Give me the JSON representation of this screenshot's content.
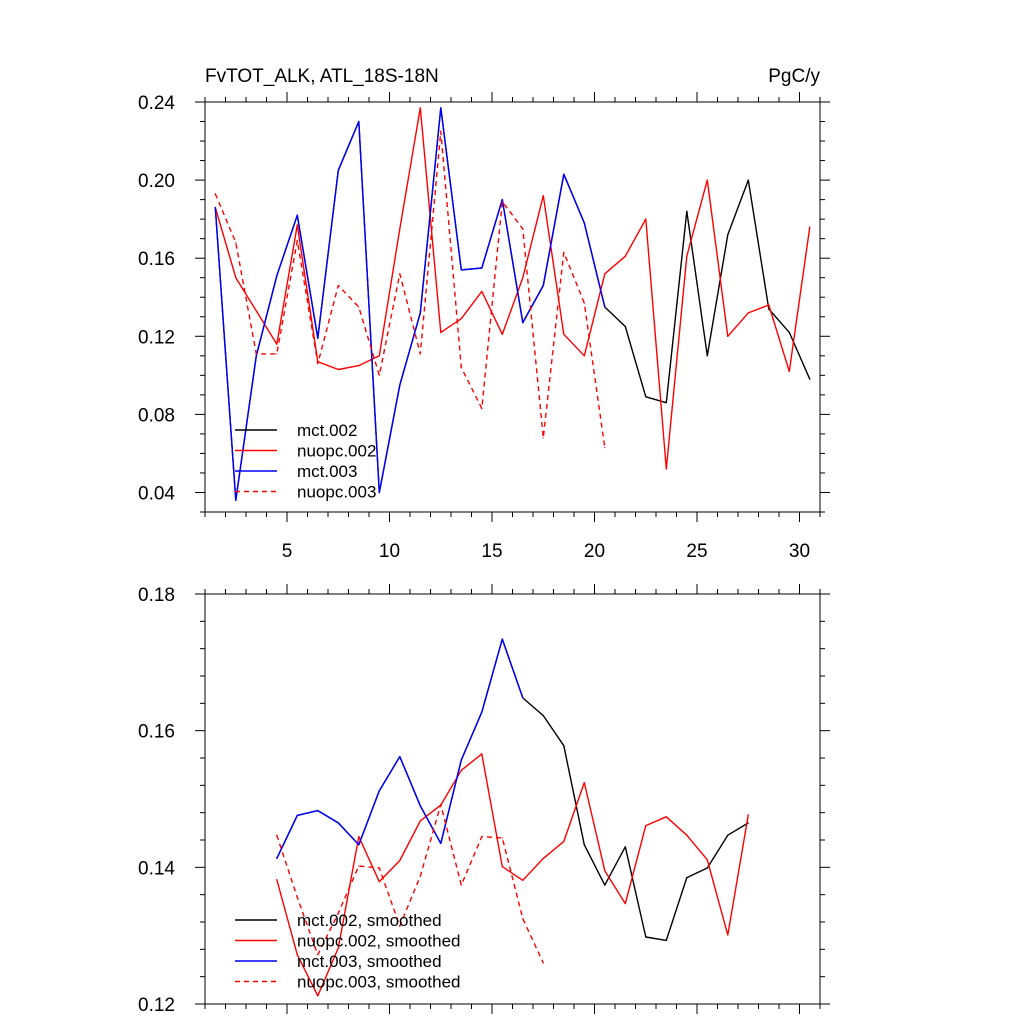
{
  "chart_data": [
    {
      "type": "line",
      "title": "FvTOT_ALK, ATL_18S-18N",
      "units": "PgC/y",
      "xlim": [
        1,
        31
      ],
      "ylim": [
        0.03,
        0.24
      ],
      "xticks": [
        5,
        10,
        15,
        20,
        25,
        30
      ],
      "xtick_labels": [
        "5",
        "10",
        "15",
        "20",
        "25",
        "30"
      ],
      "yticks": [
        0.04,
        0.08,
        0.12,
        0.16,
        0.2,
        0.24
      ],
      "ytick_labels": [
        "0.04",
        "0.08",
        "0.12",
        "0.16",
        "0.20",
        "0.24"
      ],
      "legend_position": "bottom-left",
      "series": [
        {
          "name": "mct.002",
          "color": "#000000",
          "dash": "solid",
          "x": [
            1.5,
            2.5,
            3.5,
            4.5,
            5.5,
            6.5,
            7.5,
            8.5,
            9.5,
            10.5,
            11.5,
            12.5,
            13.5,
            14.5,
            15.5,
            16.5,
            17.5,
            18.5,
            19.5,
            20.5,
            21.5,
            22.5,
            23.5,
            24.5,
            25.5,
            26.5,
            27.5,
            28.5,
            29.5,
            30.5
          ],
          "values": [
            0.186,
            0.036,
            0.11,
            0.151,
            0.182,
            0.119,
            0.205,
            0.23,
            0.04,
            0.095,
            0.132,
            0.237,
            0.154,
            0.155,
            0.19,
            0.127,
            0.146,
            0.203,
            0.178,
            0.135,
            0.125,
            0.089,
            0.086,
            0.184,
            0.11,
            0.172,
            0.2,
            0.134,
            0.122,
            0.098
          ]
        },
        {
          "name": "nuopc.002",
          "color": "#ff0000",
          "dash": "solid",
          "x": [
            1.5,
            2.5,
            3.5,
            4.5,
            5.5,
            6.5,
            7.5,
            8.5,
            9.5,
            10.5,
            11.5,
            12.5,
            13.5,
            14.5,
            15.5,
            16.5,
            17.5,
            18.5,
            19.5,
            20.5,
            21.5,
            22.5,
            23.5,
            24.5,
            25.5,
            26.5,
            27.5,
            28.5,
            29.5,
            30.5
          ],
          "values": [
            0.186,
            0.15,
            0.133,
            0.116,
            0.177,
            0.107,
            0.103,
            0.105,
            0.11,
            0.175,
            0.237,
            0.122,
            0.129,
            0.143,
            0.121,
            0.15,
            0.192,
            0.121,
            0.11,
            0.152,
            0.161,
            0.18,
            0.052,
            0.161,
            0.2,
            0.12,
            0.132,
            0.136,
            0.102,
            0.176
          ]
        },
        {
          "name": "mct.003",
          "color": "#0000ff",
          "dash": "solid",
          "x": [
            1.5,
            2.5,
            3.5,
            4.5,
            5.5,
            6.5,
            7.5,
            8.5,
            9.5,
            10.5,
            11.5,
            12.5,
            13.5,
            14.5,
            15.5,
            16.5,
            17.5,
            18.5,
            19.5,
            20.5
          ],
          "values": [
            0.186,
            0.036,
            0.11,
            0.151,
            0.182,
            0.119,
            0.205,
            0.23,
            0.04,
            0.095,
            0.132,
            0.237,
            0.154,
            0.155,
            0.19,
            0.127,
            0.146,
            0.203,
            0.178,
            0.135
          ]
        },
        {
          "name": "nuopc.003",
          "color": "#ff0000",
          "dash": "dashed",
          "x": [
            1.5,
            2.5,
            3.5,
            4.5,
            5.5,
            6.5,
            7.5,
            8.5,
            9.5,
            10.5,
            11.5,
            12.5,
            13.5,
            14.5,
            15.5,
            16.5,
            17.5,
            18.5,
            19.5,
            20.5
          ],
          "values": [
            0.193,
            0.168,
            0.111,
            0.111,
            0.169,
            0.106,
            0.146,
            0.135,
            0.1,
            0.152,
            0.111,
            0.225,
            0.104,
            0.083,
            0.189,
            0.175,
            0.068,
            0.163,
            0.137,
            0.063
          ]
        }
      ]
    },
    {
      "type": "line",
      "title": "",
      "xlim": [
        1,
        31
      ],
      "ylim": [
        0.12,
        0.18
      ],
      "xticks": [
        5,
        10,
        15,
        20,
        25,
        30
      ],
      "yticks": [
        0.12,
        0.14,
        0.16,
        0.18
      ],
      "ytick_labels": [
        "0.12",
        "0.14",
        "0.16",
        "0.18"
      ],
      "legend_position": "bottom-left",
      "series": [
        {
          "name": "mct.002, smoothed",
          "color": "#000000",
          "dash": "solid",
          "x": [
            4.5,
            5.5,
            6.5,
            7.5,
            8.5,
            9.5,
            10.5,
            11.5,
            12.5,
            13.5,
            14.5,
            15.5,
            16.5,
            17.5,
            18.5,
            19.5,
            20.5,
            21.5,
            22.5,
            23.5,
            24.5,
            25.5,
            26.5,
            27.5
          ],
          "values": [
            0.1413,
            0.1476,
            0.1483,
            0.1465,
            0.1433,
            0.1512,
            0.1562,
            0.149,
            0.1435,
            0.1557,
            0.1627,
            0.1734,
            0.1648,
            0.1622,
            0.1578,
            0.1433,
            0.1374,
            0.143,
            0.1298,
            0.1293,
            0.1385,
            0.1399,
            0.1447,
            0.1465
          ]
        },
        {
          "name": "nuopc.002, smoothed",
          "color": "#ff0000",
          "dash": "solid",
          "x": [
            4.5,
            5.5,
            6.5,
            7.5,
            8.5,
            9.5,
            10.5,
            11.5,
            12.5,
            13.5,
            14.5,
            15.5,
            16.5,
            17.5,
            18.5,
            19.5,
            20.5,
            21.5,
            22.5,
            23.5,
            24.5,
            25.5,
            26.5,
            27.5
          ],
          "values": [
            0.1382,
            0.1272,
            0.1212,
            0.1282,
            0.1445,
            0.1379,
            0.141,
            0.1468,
            0.1491,
            0.1542,
            0.1566,
            0.1401,
            0.1381,
            0.1413,
            0.1438,
            0.1524,
            0.1395,
            0.1347,
            0.1461,
            0.1474,
            0.1447,
            0.1411,
            0.1301,
            0.1477
          ]
        },
        {
          "name": "mct.003, smoothed",
          "color": "#0000ff",
          "dash": "solid",
          "x": [
            4.5,
            5.5,
            6.5,
            7.5,
            8.5,
            9.5,
            10.5,
            11.5,
            12.5,
            13.5,
            14.5,
            15.5,
            16.5
          ],
          "values": [
            0.1413,
            0.1476,
            0.1483,
            0.1465,
            0.1433,
            0.1512,
            0.1562,
            0.149,
            0.1435,
            0.1557,
            0.1627,
            0.1734,
            0.1648
          ]
        },
        {
          "name": "nuopc.003, smoothed",
          "color": "#ff0000",
          "dash": "dashed",
          "x": [
            4.5,
            5.5,
            6.5,
            7.5,
            8.5,
            9.5,
            10.5,
            11.5,
            12.5,
            13.5,
            14.5,
            15.5,
            16.5,
            17.5
          ],
          "values": [
            0.1447,
            0.1356,
            0.1272,
            0.1333,
            0.1402,
            0.1399,
            0.1314,
            0.1387,
            0.1492,
            0.1374,
            0.1445,
            0.1443,
            0.1325,
            0.126
          ]
        }
      ]
    }
  ]
}
